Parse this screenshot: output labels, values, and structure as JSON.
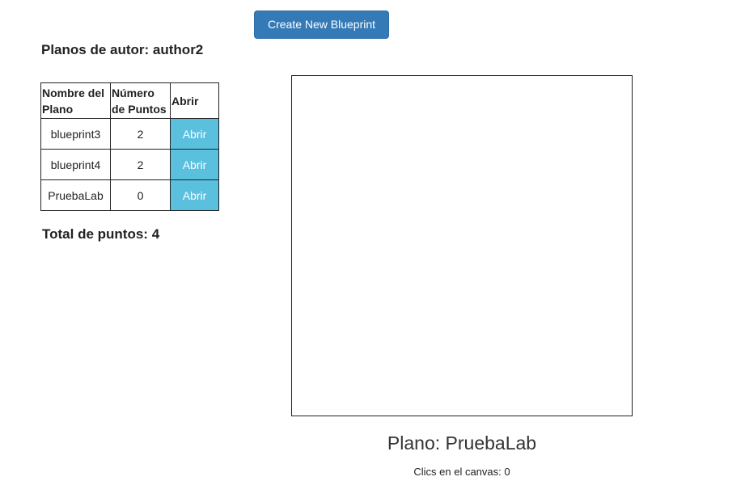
{
  "toolbar": {
    "create_label": "Create New Blueprint"
  },
  "author": {
    "title_prefix": "Planos de autor:",
    "name": "author2"
  },
  "table": {
    "headers": {
      "name": "Nombre del Plano",
      "points": "Número de Puntos",
      "open": "Abrir"
    },
    "rows": [
      {
        "name": "blueprint3",
        "points": "2",
        "open_label": "Abrir"
      },
      {
        "name": "blueprint4",
        "points": "2",
        "open_label": "Abrir"
      },
      {
        "name": "PruebaLab",
        "points": "0",
        "open_label": "Abrir"
      }
    ]
  },
  "summary": {
    "total_label": "Total de puntos:",
    "total_value": "4"
  },
  "canvas": {
    "plano_prefix": "Plano:",
    "plano_name": "PruebaLab",
    "clicks_label": "Clics en el canvas:",
    "clicks_value": "0"
  },
  "colors": {
    "primary": "#337ab7",
    "info": "#5bc0de"
  }
}
